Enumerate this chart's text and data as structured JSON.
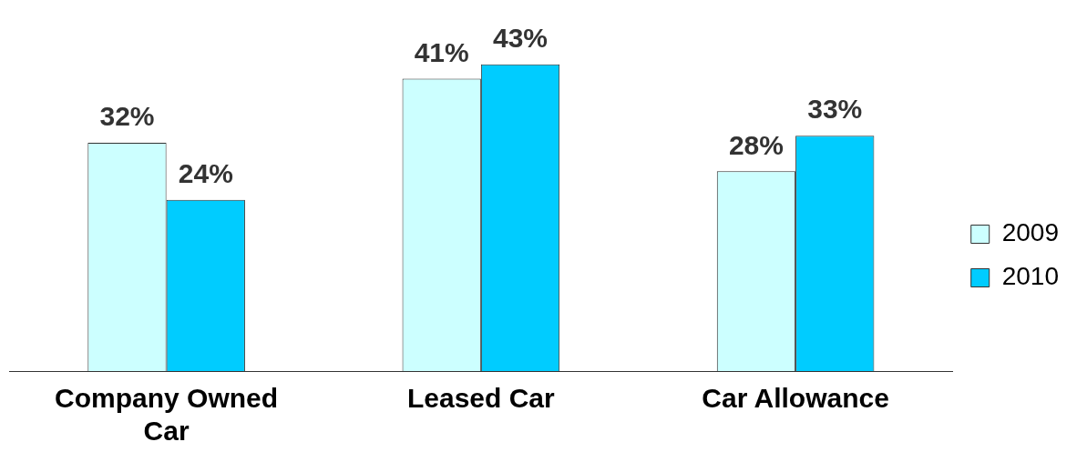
{
  "chart_data": {
    "type": "bar",
    "categories": [
      "Company Owned Car",
      "Leased Car",
      "Car Allowance"
    ],
    "series": [
      {
        "name": "2009",
        "color": "#ccffff",
        "values": [
          32,
          41,
          28
        ],
        "value_labels": [
          "32%",
          "41%",
          "28%"
        ]
      },
      {
        "name": "2010",
        "color": "#00ccff",
        "values": [
          24,
          43,
          33
        ],
        "value_labels": [
          "24%",
          "43%",
          "33%"
        ]
      }
    ],
    "legend": "right",
    "grid": false
  }
}
